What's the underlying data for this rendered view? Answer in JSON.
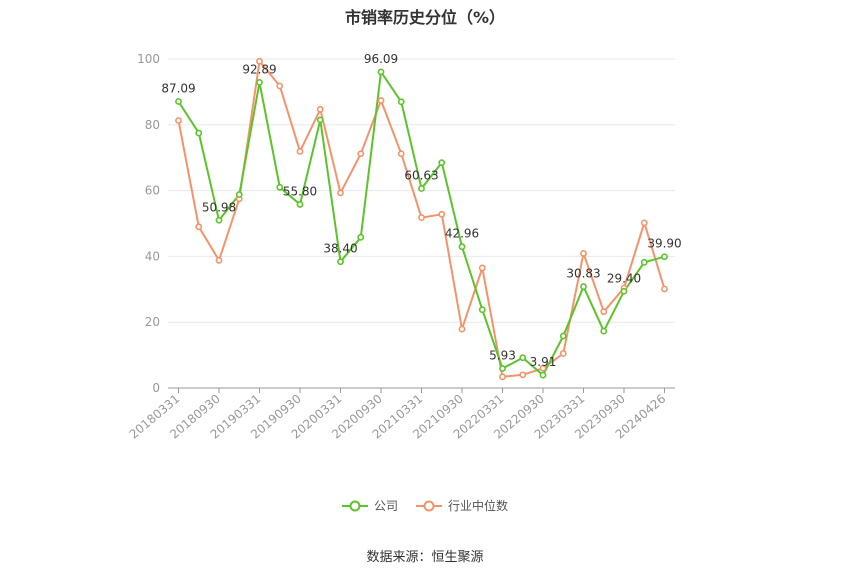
{
  "title": "市销率历史分位（%）",
  "source": "数据来源：恒生聚源",
  "legend": {
    "company": "公司",
    "industry": "行业中位数"
  },
  "colors": {
    "company": "#5cc32a",
    "industry": "#f4936a",
    "axis": "#999999",
    "grid": "#e8e8ee",
    "tick": "#999999"
  },
  "chart_data": {
    "type": "line",
    "title": "市销率历史分位（%）",
    "ylim": [
      0,
      100
    ],
    "y_ticks": [
      0,
      20,
      40,
      60,
      80,
      100
    ],
    "x_tick_labels": [
      "20180331",
      "20180930",
      "20190331",
      "20190930",
      "20200331",
      "20200930",
      "20210331",
      "20210930",
      "20220331",
      "20220930",
      "20230331",
      "20230930",
      "20240426"
    ],
    "x": [
      "20180331",
      "20180630",
      "20180930",
      "20181231",
      "20190331",
      "20190630",
      "20190930",
      "20191231",
      "20200331",
      "20200630",
      "20200930",
      "20201231",
      "20210331",
      "20210630",
      "20210930",
      "20211231",
      "20220331",
      "20220630",
      "20220930",
      "20221231",
      "20230331",
      "20230630",
      "20230930",
      "20231231",
      "20240426"
    ],
    "series": [
      {
        "name": "公司",
        "values": [
          87.09,
          77.5,
          50.98,
          58.8,
          92.89,
          61.0,
          55.8,
          81.5,
          38.4,
          45.8,
          96.09,
          87.0,
          60.63,
          68.5,
          42.96,
          23.8,
          5.93,
          9.2,
          3.91,
          15.8,
          30.83,
          17.3,
          29.4,
          38.2,
          39.9
        ]
      },
      {
        "name": "行业中位数",
        "values": [
          81.3,
          49.0,
          38.8,
          57.5,
          99.3,
          91.8,
          71.9,
          84.7,
          59.3,
          71.2,
          87.4,
          71.2,
          51.8,
          52.8,
          17.9,
          36.5,
          3.4,
          4.0,
          6.0,
          10.5,
          40.9,
          23.2,
          30.4,
          50.2,
          30.1
        ]
      }
    ],
    "data_labels": [
      {
        "index": 0,
        "text": "87.09"
      },
      {
        "index": 2,
        "text": "50.98"
      },
      {
        "index": 4,
        "text": "92.89"
      },
      {
        "index": 6,
        "text": "55.80"
      },
      {
        "index": 8,
        "text": "38.40"
      },
      {
        "index": 10,
        "text": "96.09"
      },
      {
        "index": 12,
        "text": "60.63"
      },
      {
        "index": 14,
        "text": "42.96"
      },
      {
        "index": 16,
        "text": "5.93"
      },
      {
        "index": 18,
        "text": "3.91"
      },
      {
        "index": 20,
        "text": "30.83"
      },
      {
        "index": 22,
        "text": "29.40"
      },
      {
        "index": 24,
        "text": "39.90"
      }
    ],
    "grid": true,
    "legend_position": "bottom"
  }
}
